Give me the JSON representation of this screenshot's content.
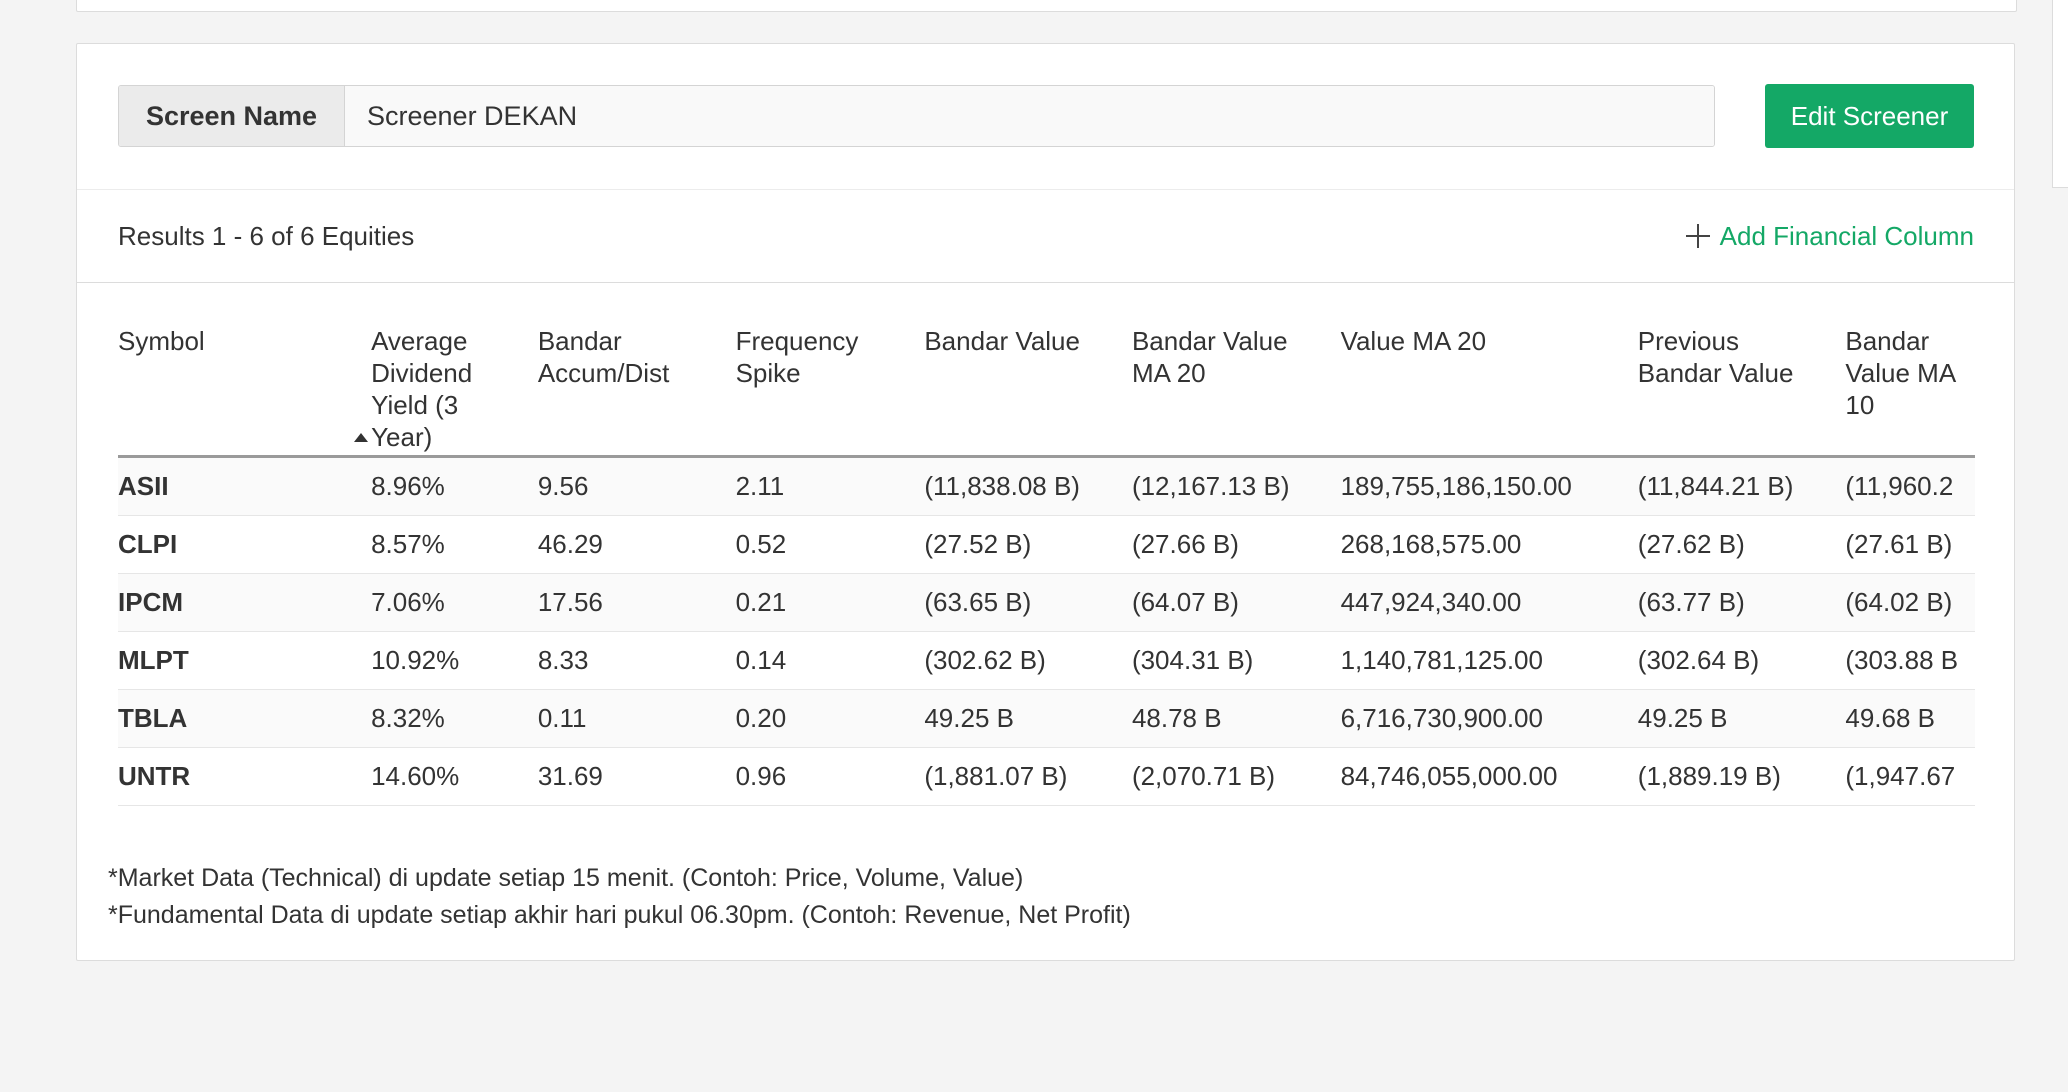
{
  "screen": {
    "label": "Screen Name",
    "value": "Screener DEKAN",
    "edit_label": "Edit Screener"
  },
  "results": {
    "summary": "Results 1 - 6 of 6 Equities",
    "add_column_label": "Add Financial Column"
  },
  "table": {
    "columns": [
      "Symbol",
      "Average Dividend Yield (3 Year)",
      "Bandar Accum/Dist",
      "Frequency Spike",
      "Bandar Value",
      "Bandar Value MA 20",
      "Value MA 20",
      "Previous Bandar Value",
      "Bandar Value MA 10"
    ],
    "sorted_column": "Average Dividend Yield (3 Year)",
    "rows": [
      [
        "ASII",
        "8.96%",
        "9.56",
        "2.11",
        "(11,838.08 B)",
        "(12,167.13 B)",
        "189,755,186,150.00",
        "(11,844.21 B)",
        "(11,960.2"
      ],
      [
        "CLPI",
        "8.57%",
        "46.29",
        "0.52",
        "(27.52 B)",
        "(27.66 B)",
        "268,168,575.00",
        "(27.62 B)",
        "(27.61 B)"
      ],
      [
        "IPCM",
        "7.06%",
        "17.56",
        "0.21",
        "(63.65 B)",
        "(64.07 B)",
        "447,924,340.00",
        "(63.77 B)",
        "(64.02 B)"
      ],
      [
        "MLPT",
        "10.92%",
        "8.33",
        "0.14",
        "(302.62 B)",
        "(304.31 B)",
        "1,140,781,125.00",
        "(302.64 B)",
        "(303.88 B"
      ],
      [
        "TBLA",
        "8.32%",
        "0.11",
        "0.20",
        "49.25 B",
        "48.78 B",
        "6,716,730,900.00",
        "49.25 B",
        "49.68 B"
      ],
      [
        "UNTR",
        "14.60%",
        "31.69",
        "0.96",
        "(1,881.07 B)",
        "(2,070.71 B)",
        "84,746,055,000.00",
        "(1,889.19 B)",
        "(1,947.67"
      ]
    ]
  },
  "notes": [
    "*Market Data (Technical) di update setiap 15 menit. (Contoh: Price, Volume, Value)",
    "*Fundamental Data di update setiap akhir hari pukul 06.30pm. (Contoh: Revenue, Net Profit)"
  ],
  "colors": {
    "accent": "#14a866",
    "background": "#f4f4f4"
  }
}
